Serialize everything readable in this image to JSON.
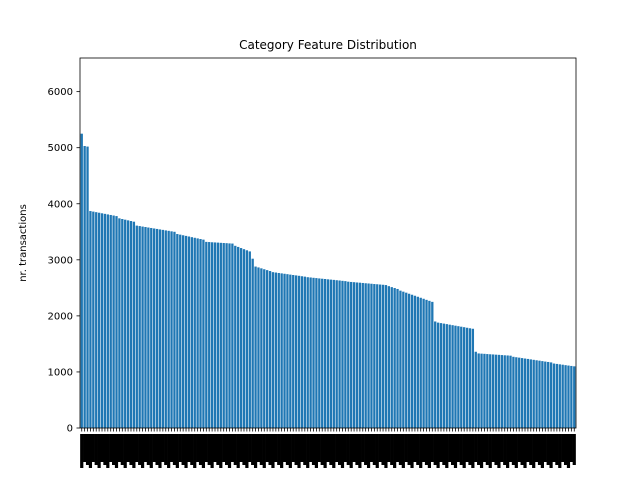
{
  "chart_data": {
    "type": "bar",
    "title": "Category Feature Distribution",
    "xlabel": "",
    "ylabel": "nr. transactions",
    "ylim": [
      0,
      6600
    ],
    "yticks": [
      0,
      1000,
      2000,
      3000,
      4000,
      5000,
      6000
    ],
    "grid": false,
    "legend": "none",
    "bar_color": "#1f77b4",
    "x_tick_labels_note": "dense rotated category labels along the x axis are too small to read",
    "segments": [
      {
        "count": 1,
        "from": 5250,
        "to": 5250
      },
      {
        "count": 1,
        "from": 5030,
        "to": 5030
      },
      {
        "count": 1,
        "from": 5020,
        "to": 5020
      },
      {
        "count": 10,
        "from": 3870,
        "to": 3780
      },
      {
        "count": 6,
        "from": 3740,
        "to": 3680
      },
      {
        "count": 14,
        "from": 3610,
        "to": 3500
      },
      {
        "count": 10,
        "from": 3460,
        "to": 3360
      },
      {
        "count": 10,
        "from": 3320,
        "to": 3290
      },
      {
        "count": 6,
        "from": 3250,
        "to": 3150
      },
      {
        "count": 1,
        "from": 3020,
        "to": 3020
      },
      {
        "count": 6,
        "from": 2880,
        "to": 2800
      },
      {
        "count": 12,
        "from": 2780,
        "to": 2700
      },
      {
        "count": 14,
        "from": 2690,
        "to": 2620
      },
      {
        "count": 14,
        "from": 2610,
        "to": 2550
      },
      {
        "count": 4,
        "from": 2530,
        "to": 2480
      },
      {
        "count": 12,
        "from": 2450,
        "to": 2250
      },
      {
        "count": 1,
        "from": 1900,
        "to": 1900
      },
      {
        "count": 13,
        "from": 1880,
        "to": 1770
      },
      {
        "count": 1,
        "from": 1360,
        "to": 1360
      },
      {
        "count": 12,
        "from": 1330,
        "to": 1290
      },
      {
        "count": 14,
        "from": 1270,
        "to": 1170
      },
      {
        "count": 8,
        "from": 1150,
        "to": 1100
      }
    ]
  }
}
